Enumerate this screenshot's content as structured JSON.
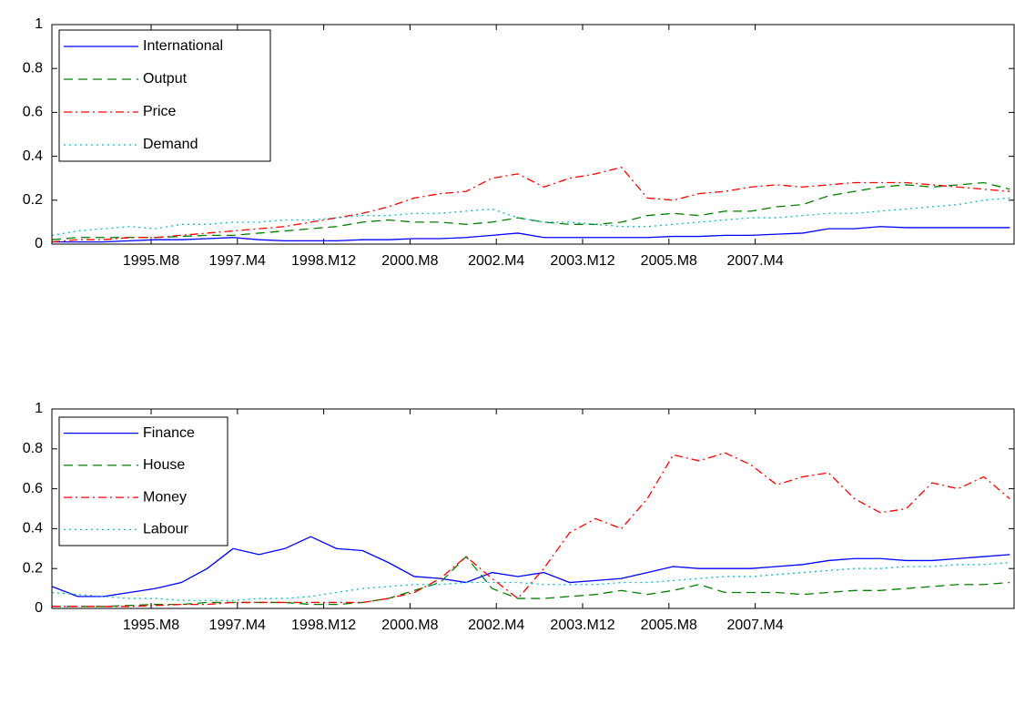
{
  "chart_data": [
    {
      "type": "line",
      "legend": "northwest",
      "grid": false,
      "x": [
        "1993.M9",
        "1994.M3",
        "1994.M9",
        "1995.M3",
        "1995.M9",
        "1996.M3",
        "1996.M9",
        "1997.M3",
        "1997.M9",
        "1998.M3",
        "1998.M9",
        "1999.M3",
        "1999.M9",
        "2000.M3",
        "2000.M9",
        "2001.M3",
        "2001.M9",
        "2002.M3",
        "2002.M9",
        "2003.M3",
        "2003.M9",
        "2004.M3",
        "2004.M9",
        "2005.M3",
        "2005.M9",
        "2006.M3",
        "2006.M9",
        "2007.M3",
        "2007.M9",
        "2008.M3",
        "2008.M9",
        "2009.M3",
        "2009.M9",
        "2010.M3",
        "2010.M9",
        "2011.M3",
        "2011.M9",
        "2012.M3"
      ],
      "xlim": [
        "1993.M9",
        "2012.M4"
      ],
      "xticks": [
        "1995.M8",
        "1997.M4",
        "1998.M12",
        "2000.M8",
        "2002.M4",
        "2003.M12",
        "2005.M8",
        "2007.M4"
      ],
      "ylim": [
        0,
        1
      ],
      "yticks": [
        0,
        0.2,
        0.4,
        0.6,
        0.8,
        1
      ],
      "series": [
        {
          "name": "International",
          "color": "#0000ff",
          "style": "solid",
          "values": [
            0.01,
            0.01,
            0.01,
            0.015,
            0.02,
            0.02,
            0.025,
            0.03,
            0.02,
            0.015,
            0.015,
            0.015,
            0.02,
            0.02,
            0.025,
            0.025,
            0.03,
            0.04,
            0.05,
            0.03,
            0.03,
            0.03,
            0.03,
            0.03,
            0.035,
            0.035,
            0.04,
            0.04,
            0.045,
            0.05,
            0.07,
            0.07,
            0.08,
            0.075,
            0.075,
            0.075,
            0.075,
            0.075
          ]
        },
        {
          "name": "Output",
          "color": "#008000",
          "style": "dashed",
          "values": [
            0.02,
            0.03,
            0.03,
            0.03,
            0.03,
            0.035,
            0.04,
            0.04,
            0.05,
            0.06,
            0.07,
            0.08,
            0.1,
            0.11,
            0.1,
            0.1,
            0.09,
            0.1,
            0.12,
            0.1,
            0.09,
            0.09,
            0.1,
            0.13,
            0.14,
            0.13,
            0.15,
            0.15,
            0.17,
            0.18,
            0.22,
            0.24,
            0.26,
            0.27,
            0.26,
            0.27,
            0.28,
            0.25
          ]
        },
        {
          "name": "Price",
          "color": "#ff0000",
          "style": "dashdot",
          "values": [
            0.01,
            0.02,
            0.02,
            0.03,
            0.03,
            0.04,
            0.05,
            0.06,
            0.07,
            0.08,
            0.1,
            0.12,
            0.14,
            0.17,
            0.21,
            0.23,
            0.24,
            0.3,
            0.32,
            0.26,
            0.3,
            0.32,
            0.35,
            0.21,
            0.2,
            0.23,
            0.24,
            0.26,
            0.27,
            0.26,
            0.27,
            0.28,
            0.28,
            0.28,
            0.27,
            0.26,
            0.25,
            0.24
          ]
        },
        {
          "name": "Demand",
          "color": "#00bfbf",
          "style": "dotted",
          "values": [
            0.04,
            0.06,
            0.07,
            0.08,
            0.07,
            0.09,
            0.09,
            0.1,
            0.1,
            0.11,
            0.11,
            0.12,
            0.13,
            0.13,
            0.14,
            0.14,
            0.15,
            0.16,
            0.12,
            0.1,
            0.1,
            0.09,
            0.08,
            0.08,
            0.09,
            0.1,
            0.11,
            0.12,
            0.12,
            0.13,
            0.14,
            0.14,
            0.15,
            0.16,
            0.17,
            0.18,
            0.2,
            0.21
          ]
        }
      ]
    },
    {
      "type": "line",
      "legend": "northwest",
      "grid": false,
      "x": [
        "1993.M9",
        "1994.M3",
        "1994.M9",
        "1995.M3",
        "1995.M9",
        "1996.M3",
        "1996.M9",
        "1997.M3",
        "1997.M9",
        "1998.M3",
        "1998.M9",
        "1999.M3",
        "1999.M9",
        "2000.M3",
        "2000.M9",
        "2001.M3",
        "2001.M9",
        "2002.M3",
        "2002.M9",
        "2003.M3",
        "2003.M9",
        "2004.M3",
        "2004.M9",
        "2005.M3",
        "2005.M9",
        "2006.M3",
        "2006.M9",
        "2007.M3",
        "2007.M9",
        "2008.M3",
        "2008.M9",
        "2009.M3",
        "2009.M9",
        "2010.M3",
        "2010.M9",
        "2011.M3",
        "2011.M9",
        "2012.M3"
      ],
      "xlim": [
        "1993.M9",
        "2012.M4"
      ],
      "xticks": [
        "1995.M8",
        "1997.M4",
        "1998.M12",
        "2000.M8",
        "2002.M4",
        "2003.M12",
        "2005.M8",
        "2007.M4"
      ],
      "ylim": [
        0,
        1
      ],
      "yticks": [
        0,
        0.2,
        0.4,
        0.6,
        0.8,
        1
      ],
      "series": [
        {
          "name": "Finance",
          "color": "#0000ff",
          "style": "solid",
          "values": [
            0.11,
            0.06,
            0.06,
            0.08,
            0.1,
            0.13,
            0.2,
            0.3,
            0.27,
            0.3,
            0.36,
            0.3,
            0.29,
            0.23,
            0.16,
            0.15,
            0.13,
            0.18,
            0.16,
            0.18,
            0.13,
            0.14,
            0.15,
            0.18,
            0.21,
            0.2,
            0.2,
            0.2,
            0.21,
            0.22,
            0.24,
            0.25,
            0.25,
            0.24,
            0.24,
            0.25,
            0.26,
            0.27
          ]
        },
        {
          "name": "House",
          "color": "#008000",
          "style": "dashed",
          "values": [
            0.01,
            0.01,
            0.01,
            0.015,
            0.02,
            0.02,
            0.03,
            0.03,
            0.03,
            0.03,
            0.02,
            0.02,
            0.03,
            0.05,
            0.09,
            0.13,
            0.26,
            0.1,
            0.05,
            0.05,
            0.06,
            0.07,
            0.09,
            0.07,
            0.09,
            0.12,
            0.08,
            0.08,
            0.08,
            0.07,
            0.08,
            0.09,
            0.09,
            0.1,
            0.11,
            0.12,
            0.12,
            0.13
          ]
        },
        {
          "name": "Money",
          "color": "#ff0000",
          "style": "dashdot",
          "values": [
            0.01,
            0.01,
            0.01,
            0.01,
            0.015,
            0.02,
            0.02,
            0.03,
            0.03,
            0.03,
            0.03,
            0.03,
            0.03,
            0.05,
            0.08,
            0.15,
            0.26,
            0.15,
            0.05,
            0.2,
            0.38,
            0.45,
            0.4,
            0.55,
            0.77,
            0.74,
            0.78,
            0.72,
            0.62,
            0.66,
            0.68,
            0.55,
            0.48,
            0.5,
            0.63,
            0.6,
            0.66,
            0.55
          ]
        },
        {
          "name": "Labour",
          "color": "#00bfbf",
          "style": "dotted",
          "values": [
            0.08,
            0.07,
            0.06,
            0.05,
            0.05,
            0.04,
            0.04,
            0.04,
            0.05,
            0.05,
            0.06,
            0.08,
            0.1,
            0.11,
            0.12,
            0.12,
            0.13,
            0.13,
            0.13,
            0.12,
            0.12,
            0.12,
            0.13,
            0.13,
            0.14,
            0.15,
            0.16,
            0.16,
            0.17,
            0.18,
            0.19,
            0.2,
            0.2,
            0.21,
            0.21,
            0.22,
            0.22,
            0.23
          ]
        }
      ]
    }
  ]
}
